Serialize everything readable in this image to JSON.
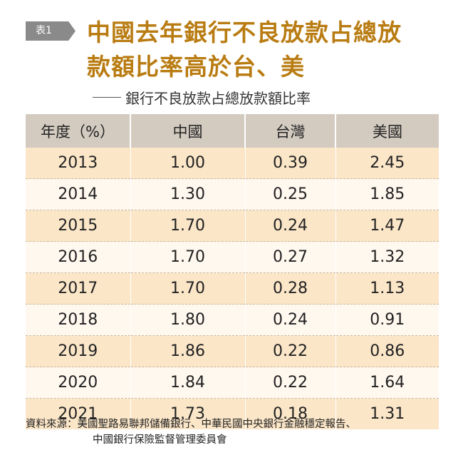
{
  "tag": "表1",
  "title_line1": "中國去年銀行不良放款占總放",
  "title_line2": "款額比率高於台、美",
  "subtitle": "銀行不良放款占總放款額比率",
  "table": {
    "headers": [
      "年度（%）",
      "中國",
      "台灣",
      "美國"
    ],
    "rows": [
      [
        "2013",
        "1.00",
        "0.39",
        "2.45"
      ],
      [
        "2014",
        "1.30",
        "0.25",
        "1.85"
      ],
      [
        "2015",
        "1.70",
        "0.24",
        "1.47"
      ],
      [
        "2016",
        "1.70",
        "0.27",
        "1.32"
      ],
      [
        "2017",
        "1.70",
        "0.28",
        "1.13"
      ],
      [
        "2018",
        "1.80",
        "0.24",
        "0.91"
      ],
      [
        "2019",
        "1.86",
        "0.22",
        "0.86"
      ],
      [
        "2020",
        "1.84",
        "0.22",
        "1.64"
      ],
      [
        "2021",
        "1.73",
        "0.18",
        "1.31"
      ]
    ]
  },
  "source_line1": "資料來源：美國聖路易聯邦儲備銀行、中華民國中央銀行金融穩定報告、",
  "source_line2": "中國銀行保險監督管理委員會",
  "colors": {
    "title": "#b97c12",
    "header_bg": "#d3cbc0",
    "row_odd": "#fbe6c8",
    "row_even": "#fff8ef",
    "tag_bg": "#8a8a8a"
  }
}
